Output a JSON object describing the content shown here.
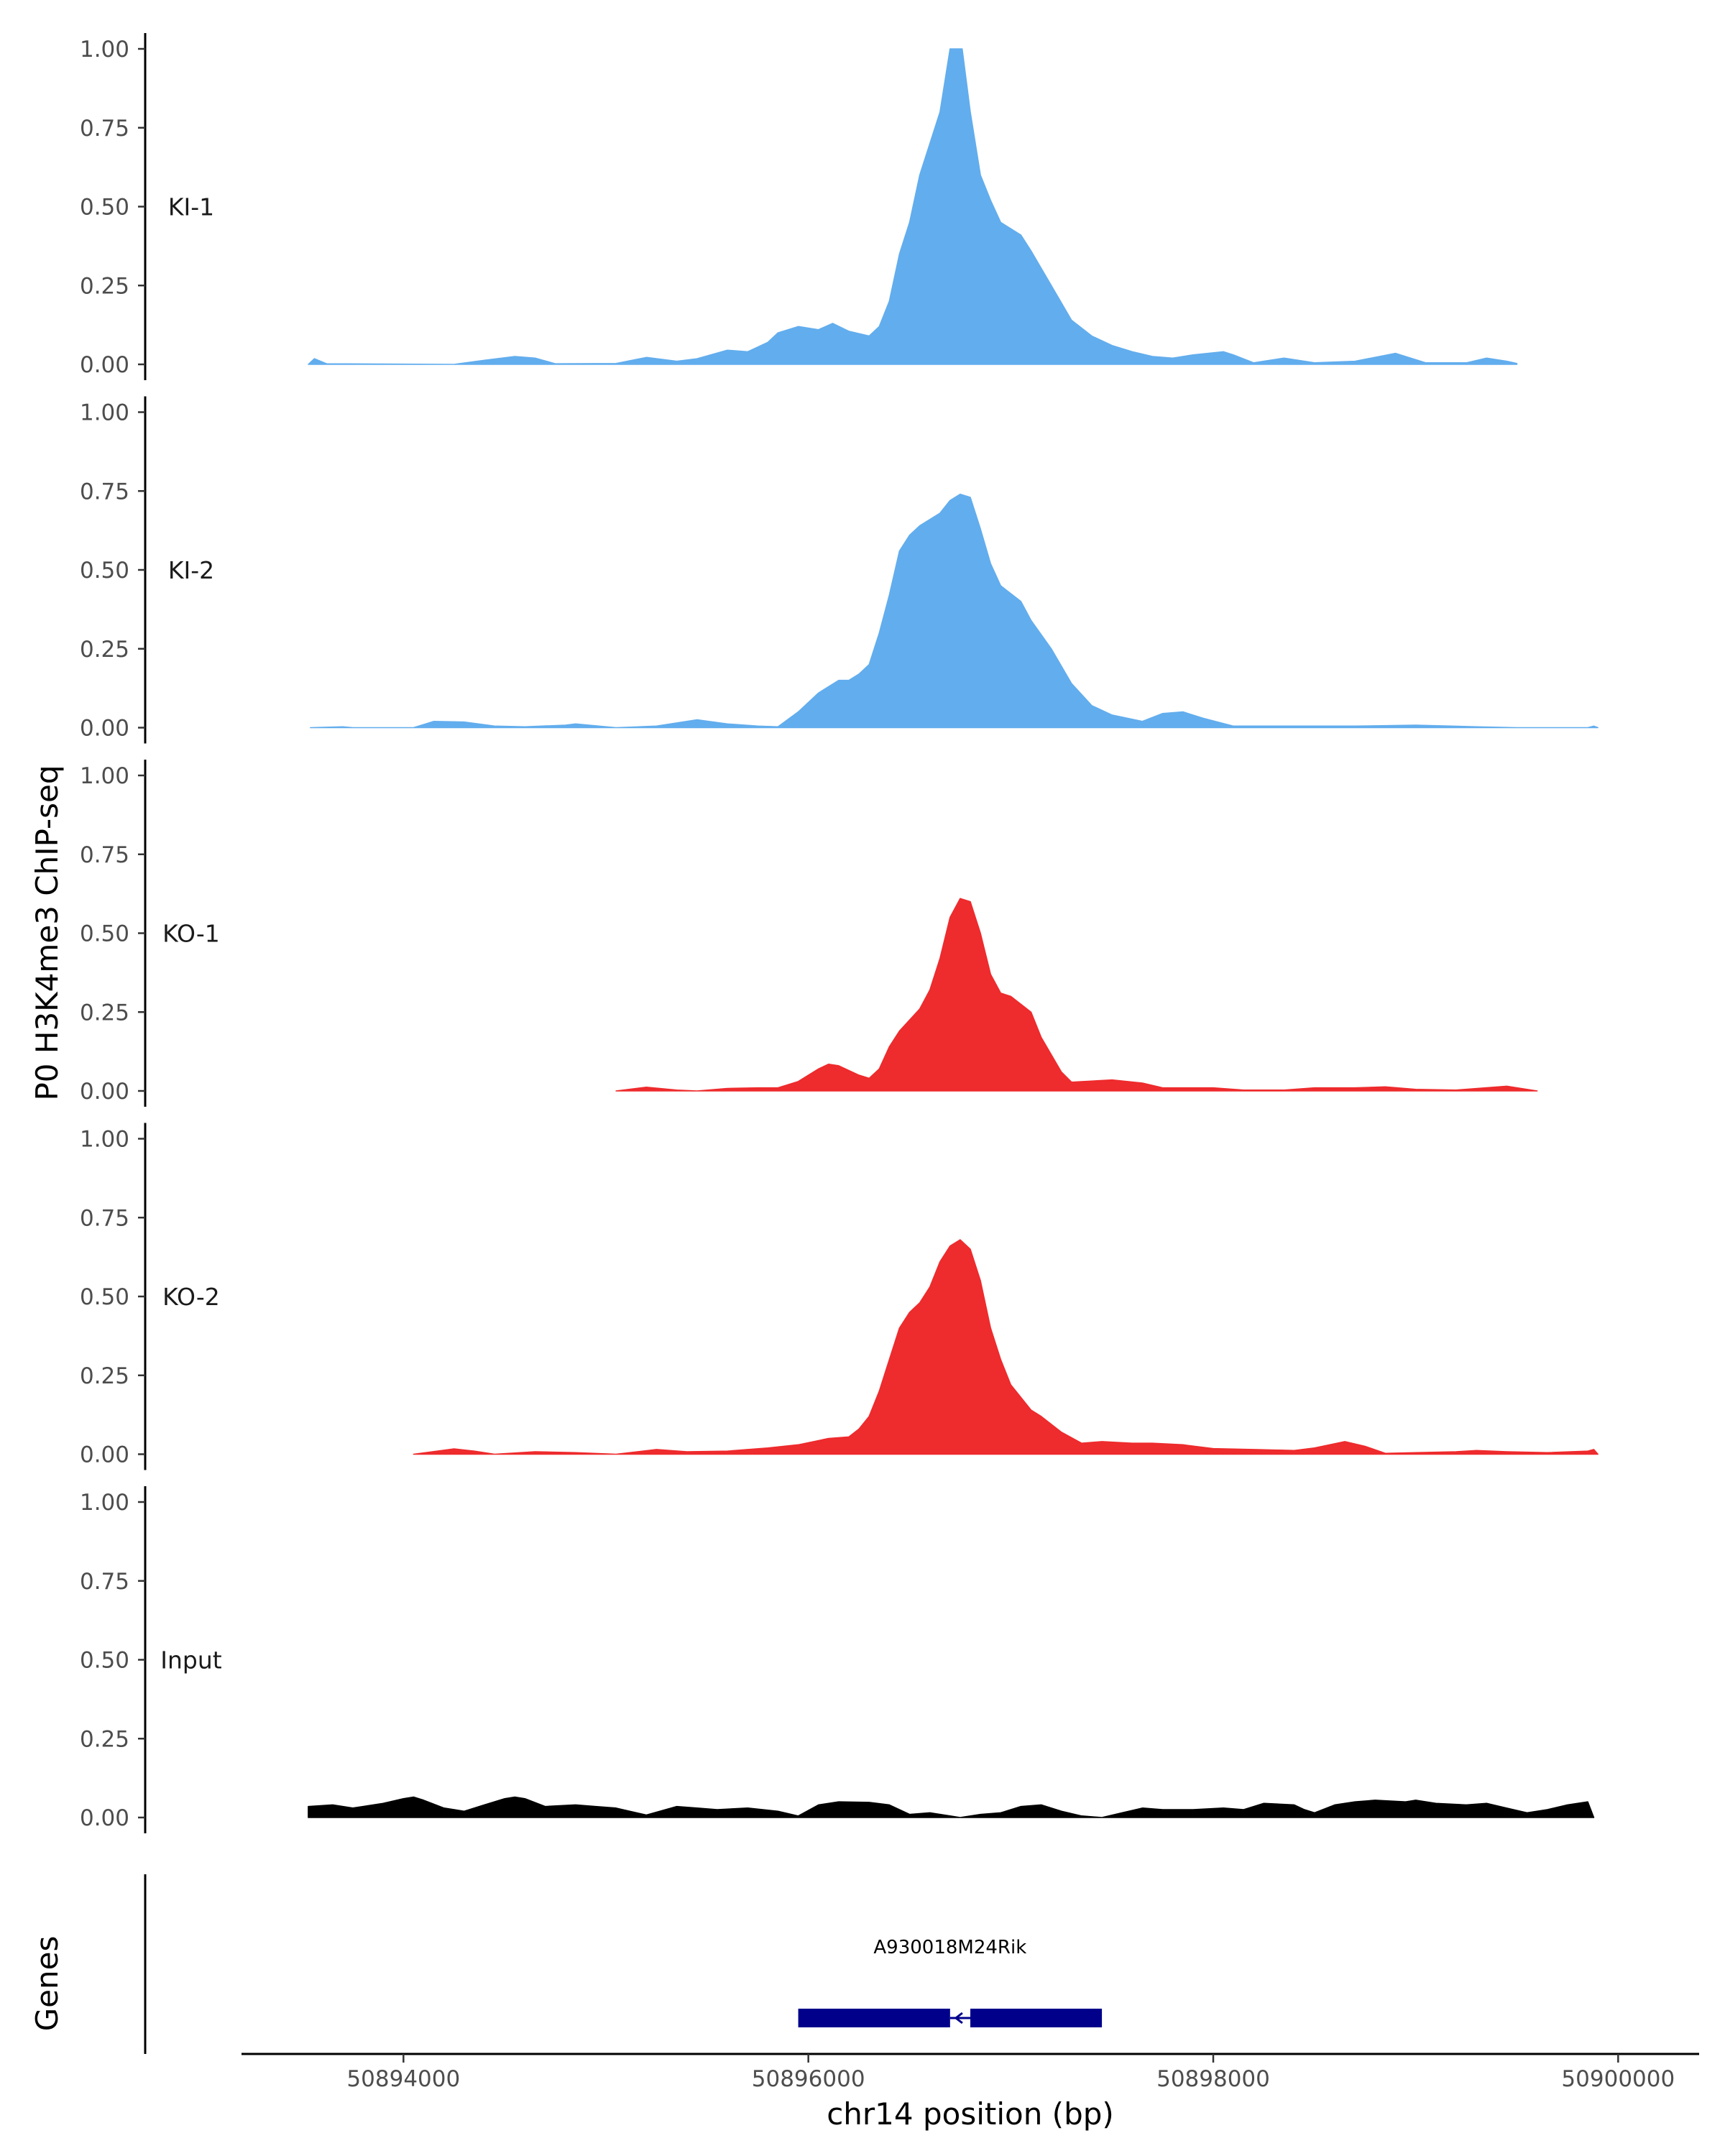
{
  "chart_data": {
    "type": "area",
    "ylabel": "P0 H3K4me3 ChIP-seq",
    "xlabel": "chr14 position (bp)",
    "xlim": [
      50893200,
      50900400
    ],
    "ylim": [
      0,
      1
    ],
    "y_ticks": [
      "0.00",
      "0.25",
      "0.50",
      "0.75",
      "1.00"
    ],
    "y_tick_values": [
      0,
      0.25,
      0.5,
      0.75,
      1
    ],
    "x_ticks": [
      "50894000",
      "50896000",
      "50898000",
      "50900000"
    ],
    "x_tick_values": [
      50894000,
      50896000,
      50898000,
      50900000
    ],
    "genes_label": "Genes",
    "colors": {
      "ki": "#62aded",
      "ko": "#ee2b2d",
      "input": "#000000",
      "gene": "#00008b"
    },
    "gene": {
      "name": "A930018M24Rik",
      "start": 50895950,
      "end": 50897450,
      "gap_start": 50896700,
      "gap_end": 50896800,
      "strand": "-"
    },
    "tracks": [
      {
        "name": "KI-1",
        "color": "#62aded",
        "points": [
          [
            50893530,
            0
          ],
          [
            50893560,
            0.018
          ],
          [
            50893620,
            0.002
          ],
          [
            50894250,
            0
          ],
          [
            50894400,
            0.013
          ],
          [
            50894550,
            0.025
          ],
          [
            50894650,
            0.02
          ],
          [
            50894750,
            0.002
          ],
          [
            50895050,
            0.003
          ],
          [
            50895200,
            0.022
          ],
          [
            50895350,
            0.01
          ],
          [
            50895450,
            0.018
          ],
          [
            50895600,
            0.045
          ],
          [
            50895700,
            0.04
          ],
          [
            50895800,
            0.07
          ],
          [
            50895850,
            0.1
          ],
          [
            50895950,
            0.12
          ],
          [
            50896050,
            0.11
          ],
          [
            50896120,
            0.13
          ],
          [
            50896200,
            0.105
          ],
          [
            50896300,
            0.09
          ],
          [
            50896350,
            0.12
          ],
          [
            50896400,
            0.2
          ],
          [
            50896450,
            0.35
          ],
          [
            50896500,
            0.45
          ],
          [
            50896550,
            0.6
          ],
          [
            50896600,
            0.7
          ],
          [
            50896650,
            0.8
          ],
          [
            50896700,
            1.0
          ],
          [
            50896760,
            1.0
          ],
          [
            50896800,
            0.8
          ],
          [
            50896850,
            0.6
          ],
          [
            50896900,
            0.52
          ],
          [
            50896950,
            0.45
          ],
          [
            50897050,
            0.41
          ],
          [
            50897100,
            0.36
          ],
          [
            50897200,
            0.25
          ],
          [
            50897300,
            0.14
          ],
          [
            50897400,
            0.09
          ],
          [
            50897500,
            0.06
          ],
          [
            50897600,
            0.04
          ],
          [
            50897700,
            0.025
          ],
          [
            50897800,
            0.02
          ],
          [
            50897900,
            0.03
          ],
          [
            50898050,
            0.04
          ],
          [
            50898100,
            0.03
          ],
          [
            50898200,
            0.005
          ],
          [
            50898350,
            0.02
          ],
          [
            50898500,
            0.005
          ],
          [
            50898700,
            0.01
          ],
          [
            50898900,
            0.035
          ],
          [
            50899050,
            0.005
          ],
          [
            50899250,
            0.005
          ],
          [
            50899350,
            0.02
          ],
          [
            50899450,
            0.01
          ],
          [
            50899500,
            0.003
          ]
        ]
      },
      {
        "name": "KI-2",
        "color": "#62aded",
        "points": [
          [
            50893540,
            0
          ],
          [
            50893700,
            0.003
          ],
          [
            50893750,
            0
          ],
          [
            50894050,
            0
          ],
          [
            50894150,
            0.02
          ],
          [
            50894300,
            0.018
          ],
          [
            50894450,
            0.005
          ],
          [
            50894600,
            0.003
          ],
          [
            50894800,
            0.008
          ],
          [
            50894850,
            0.012
          ],
          [
            50895050,
            0
          ],
          [
            50895250,
            0.005
          ],
          [
            50895450,
            0.025
          ],
          [
            50895600,
            0.012
          ],
          [
            50895750,
            0.005
          ],
          [
            50895850,
            0.003
          ],
          [
            50895950,
            0.05
          ],
          [
            50896050,
            0.11
          ],
          [
            50896150,
            0.15
          ],
          [
            50896200,
            0.15
          ],
          [
            50896250,
            0.17
          ],
          [
            50896300,
            0.2
          ],
          [
            50896350,
            0.3
          ],
          [
            50896400,
            0.42
          ],
          [
            50896450,
            0.56
          ],
          [
            50896500,
            0.61
          ],
          [
            50896550,
            0.64
          ],
          [
            50896600,
            0.66
          ],
          [
            50896650,
            0.68
          ],
          [
            50896700,
            0.72
          ],
          [
            50896750,
            0.74
          ],
          [
            50896800,
            0.73
          ],
          [
            50896850,
            0.63
          ],
          [
            50896900,
            0.52
          ],
          [
            50896950,
            0.45
          ],
          [
            50897050,
            0.4
          ],
          [
            50897100,
            0.34
          ],
          [
            50897200,
            0.25
          ],
          [
            50897300,
            0.14
          ],
          [
            50897400,
            0.07
          ],
          [
            50897500,
            0.04
          ],
          [
            50897650,
            0.02
          ],
          [
            50897750,
            0.045
          ],
          [
            50897850,
            0.05
          ],
          [
            50897950,
            0.03
          ],
          [
            50898100,
            0.005
          ],
          [
            50898400,
            0.005
          ],
          [
            50898700,
            0.005
          ],
          [
            50899000,
            0.008
          ],
          [
            50899300,
            0.003
          ],
          [
            50899500,
            0
          ],
          [
            50899850,
            0
          ],
          [
            50899880,
            0.005
          ],
          [
            50899900,
            0
          ]
        ]
      },
      {
        "name": "KO-1",
        "color": "#ee2b2d",
        "points": [
          [
            50895050,
            0
          ],
          [
            50895200,
            0.012
          ],
          [
            50895350,
            0.003
          ],
          [
            50895450,
            0
          ],
          [
            50895600,
            0.008
          ],
          [
            50895750,
            0.01
          ],
          [
            50895850,
            0.01
          ],
          [
            50895950,
            0.03
          ],
          [
            50896050,
            0.07
          ],
          [
            50896100,
            0.085
          ],
          [
            50896150,
            0.08
          ],
          [
            50896250,
            0.05
          ],
          [
            50896300,
            0.04
          ],
          [
            50896350,
            0.07
          ],
          [
            50896400,
            0.14
          ],
          [
            50896450,
            0.19
          ],
          [
            50896550,
            0.26
          ],
          [
            50896600,
            0.32
          ],
          [
            50896650,
            0.42
          ],
          [
            50896700,
            0.55
          ],
          [
            50896750,
            0.61
          ],
          [
            50896800,
            0.6
          ],
          [
            50896850,
            0.5
          ],
          [
            50896900,
            0.37
          ],
          [
            50896950,
            0.31
          ],
          [
            50897000,
            0.3
          ],
          [
            50897100,
            0.25
          ],
          [
            50897150,
            0.17
          ],
          [
            50897250,
            0.06
          ],
          [
            50897300,
            0.028
          ],
          [
            50897500,
            0.035
          ],
          [
            50897650,
            0.025
          ],
          [
            50897750,
            0.01
          ],
          [
            50898000,
            0.01
          ],
          [
            50898150,
            0.003
          ],
          [
            50898350,
            0.003
          ],
          [
            50898500,
            0.01
          ],
          [
            50898700,
            0.01
          ],
          [
            50898850,
            0.013
          ],
          [
            50899000,
            0.005
          ],
          [
            50899200,
            0.003
          ],
          [
            50899450,
            0.015
          ],
          [
            50899600,
            0
          ]
        ]
      },
      {
        "name": "KO-2",
        "color": "#ee2b2d",
        "points": [
          [
            50894050,
            0
          ],
          [
            50894250,
            0.017
          ],
          [
            50894350,
            0.01
          ],
          [
            50894450,
            0
          ],
          [
            50894650,
            0.008
          ],
          [
            50894850,
            0.005
          ],
          [
            50895050,
            0
          ],
          [
            50895250,
            0.015
          ],
          [
            50895400,
            0.008
          ],
          [
            50895600,
            0.01
          ],
          [
            50895800,
            0.02
          ],
          [
            50895950,
            0.03
          ],
          [
            50896100,
            0.05
          ],
          [
            50896200,
            0.055
          ],
          [
            50896250,
            0.08
          ],
          [
            50896300,
            0.12
          ],
          [
            50896350,
            0.2
          ],
          [
            50896400,
            0.3
          ],
          [
            50896450,
            0.4
          ],
          [
            50896500,
            0.45
          ],
          [
            50896550,
            0.48
          ],
          [
            50896600,
            0.53
          ],
          [
            50896650,
            0.61
          ],
          [
            50896700,
            0.66
          ],
          [
            50896750,
            0.68
          ],
          [
            50896800,
            0.65
          ],
          [
            50896850,
            0.55
          ],
          [
            50896900,
            0.4
          ],
          [
            50896950,
            0.3
          ],
          [
            50897000,
            0.22
          ],
          [
            50897100,
            0.14
          ],
          [
            50897150,
            0.12
          ],
          [
            50897250,
            0.07
          ],
          [
            50897350,
            0.035
          ],
          [
            50897450,
            0.04
          ],
          [
            50897600,
            0.035
          ],
          [
            50897700,
            0.035
          ],
          [
            50897850,
            0.03
          ],
          [
            50898000,
            0.018
          ],
          [
            50898200,
            0.015
          ],
          [
            50898400,
            0.012
          ],
          [
            50898500,
            0.02
          ],
          [
            50898650,
            0.04
          ],
          [
            50898750,
            0.025
          ],
          [
            50898850,
            0.003
          ],
          [
            50899000,
            0.005
          ],
          [
            50899200,
            0.008
          ],
          [
            50899300,
            0.012
          ],
          [
            50899450,
            0.008
          ],
          [
            50899650,
            0.005
          ],
          [
            50899850,
            0.01
          ],
          [
            50899880,
            0.015
          ],
          [
            50899900,
            0
          ]
        ]
      },
      {
        "name": "Input",
        "color": "#000000",
        "points": [
          [
            50893530,
            0.035
          ],
          [
            50893650,
            0.04
          ],
          [
            50893750,
            0.03
          ],
          [
            50893900,
            0.045
          ],
          [
            50894000,
            0.06
          ],
          [
            50894050,
            0.065
          ],
          [
            50894100,
            0.055
          ],
          [
            50894200,
            0.03
          ],
          [
            50894300,
            0.02
          ],
          [
            50894400,
            0.04
          ],
          [
            50894500,
            0.06
          ],
          [
            50894550,
            0.065
          ],
          [
            50894600,
            0.06
          ],
          [
            50894700,
            0.035
          ],
          [
            50894850,
            0.04
          ],
          [
            50894950,
            0.035
          ],
          [
            50895050,
            0.03
          ],
          [
            50895200,
            0.008
          ],
          [
            50895350,
            0.035
          ],
          [
            50895450,
            0.03
          ],
          [
            50895550,
            0.025
          ],
          [
            50895700,
            0.03
          ],
          [
            50895850,
            0.02
          ],
          [
            50895950,
            0.005
          ],
          [
            50896050,
            0.04
          ],
          [
            50896150,
            0.05
          ],
          [
            50896300,
            0.048
          ],
          [
            50896400,
            0.04
          ],
          [
            50896500,
            0.01
          ],
          [
            50896600,
            0.015
          ],
          [
            50896700,
            0.005
          ],
          [
            50896750,
            0
          ],
          [
            50896850,
            0.01
          ],
          [
            50896950,
            0.015
          ],
          [
            50897050,
            0.035
          ],
          [
            50897150,
            0.04
          ],
          [
            50897250,
            0.02
          ],
          [
            50897350,
            0.005
          ],
          [
            50897450,
            0
          ],
          [
            50897550,
            0.015
          ],
          [
            50897650,
            0.03
          ],
          [
            50897750,
            0.025
          ],
          [
            50897900,
            0.025
          ],
          [
            50898050,
            0.03
          ],
          [
            50898150,
            0.025
          ],
          [
            50898250,
            0.045
          ],
          [
            50898400,
            0.04
          ],
          [
            50898450,
            0.025
          ],
          [
            50898500,
            0.015
          ],
          [
            50898600,
            0.04
          ],
          [
            50898700,
            0.05
          ],
          [
            50898800,
            0.055
          ],
          [
            50898950,
            0.05
          ],
          [
            50899000,
            0.055
          ],
          [
            50899100,
            0.045
          ],
          [
            50899250,
            0.04
          ],
          [
            50899350,
            0.045
          ],
          [
            50899450,
            0.03
          ],
          [
            50899550,
            0.015
          ],
          [
            50899650,
            0.025
          ],
          [
            50899750,
            0.04
          ],
          [
            50899850,
            0.05
          ],
          [
            50899880,
            0
          ]
        ]
      }
    ]
  }
}
